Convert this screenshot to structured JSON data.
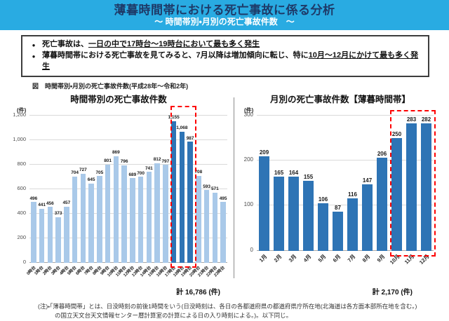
{
  "header": {
    "title": "薄暮時間帯における死亡事故に係る分析",
    "subtitle": "～ 時間帯別・月別の死亡事故件数　～",
    "background_color": "#29ABE2",
    "title_color": "#1E3A68",
    "subtitle_color": "#FFFFFF"
  },
  "callout": {
    "bullets": [
      {
        "plain": "死亡事故は、",
        "strong": "一日の中で17時台～19時台において最も多く発生"
      },
      {
        "plain": "薄暮時間帯における死亡事故を見てみると、7月以降は増加傾向に転じ、特に",
        "strong": "10月～12月にかけて最も多く発生"
      }
    ]
  },
  "figure": {
    "caption": "図　時間帯別・月別の死亡事故件数(平成28年～令和2年)"
  },
  "chart_data": [
    {
      "type": "bar",
      "title": "時間帯別の死亡事故件数",
      "unit": "(件)",
      "categories": [
        "0時台",
        "1時台",
        "2時台",
        "3時台",
        "4時台",
        "5時台",
        "6時台",
        "7時台",
        "8時台",
        "9時台",
        "10時台",
        "11時台",
        "12時台",
        "13時台",
        "14時台",
        "15時台",
        "16時台",
        "17時台",
        "18時台",
        "19時台",
        "20時台",
        "21時台",
        "22時台",
        "23時台"
      ],
      "values": [
        496,
        441,
        456,
        373,
        457,
        704,
        727,
        645,
        705,
        801,
        869,
        796,
        689,
        700,
        741,
        812,
        797,
        1155,
        1068,
        987,
        708,
        593,
        571,
        495
      ],
      "ylim": [
        0,
        1200
      ],
      "ytick_step": 200,
      "grid": true,
      "legend": "none",
      "bar_color": "#A9C9E9",
      "highlight_bar_color": "#2E74B5",
      "highlight_range": [
        17,
        19
      ],
      "highlight_box_color": "#FE0000",
      "total": "計  16,786 (件)"
    },
    {
      "type": "bar",
      "title": "月別の死亡事故件数【薄暮時間帯】",
      "unit": "(件)",
      "categories": [
        "1月",
        "2月",
        "3月",
        "4月",
        "5月",
        "6月",
        "7月",
        "8月",
        "9月",
        "10月",
        "11月",
        "12月"
      ],
      "values": [
        209,
        165,
        164,
        155,
        106,
        87,
        116,
        147,
        206,
        250,
        283,
        282
      ],
      "ylim": [
        0,
        300
      ],
      "ytick_step": 100,
      "grid": true,
      "legend": "none",
      "bar_color": "#2E74B5",
      "highlight_bar_color": "#2E74B5",
      "highlight_range": [
        9,
        11
      ],
      "highlight_box_color": "#FE0000",
      "total": "計  2,170 (件)"
    }
  ],
  "footnote": {
    "text": "(注)・「薄暮時間帯」とは、日没時刻の前後1時間をいう(日没時刻は、各日の各都道府県の都道府県庁所在地(北海道は各方面本部所在地を含む。)の国立天文台天文情報センター暦計算室の計算による日の入り時刻による。)。以下同じ。"
  }
}
